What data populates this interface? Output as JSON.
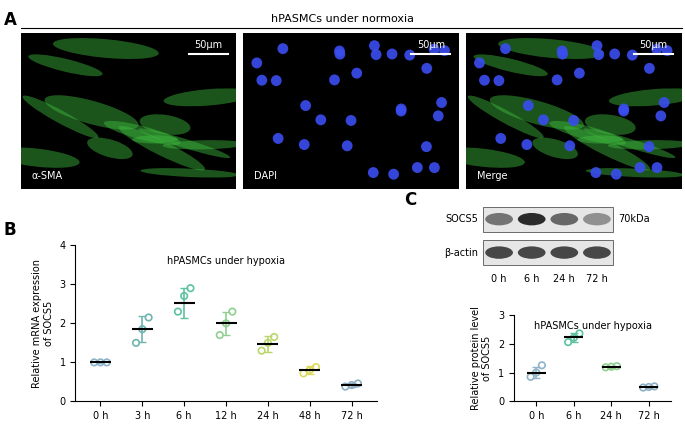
{
  "panel_labels": [
    "A",
    "B",
    "C"
  ],
  "panel_a": {
    "title": "hPASMCs under normoxia",
    "images": [
      {
        "label": "α-SMA",
        "scale_bar": "50μm"
      },
      {
        "label": "DAPI",
        "scale_bar": "50μm"
      },
      {
        "label": "Merge",
        "scale_bar": "50μm"
      }
    ]
  },
  "blot": {
    "rows": [
      {
        "label": "SOCS5",
        "size": "70kDa"
      },
      {
        "label": "β-actin"
      }
    ],
    "lanes": [
      "0 h",
      "6 h",
      "24 h",
      "72 h"
    ]
  },
  "chart_data": [
    {
      "type": "scatter",
      "title": "hPASMCs under hypoxia",
      "y_label": "Relative mRNA expression\nof SOCS5",
      "categories": [
        "0 h",
        "3 h",
        "6 h",
        "12 h",
        "24 h",
        "48 h",
        "72 h"
      ],
      "points": [
        [
          1.0,
          1.0,
          1.0
        ],
        [
          1.5,
          1.85,
          2.15
        ],
        [
          2.3,
          2.7,
          2.9
        ],
        [
          1.7,
          2.0,
          2.3
        ],
        [
          1.3,
          1.5,
          1.65
        ],
        [
          0.72,
          0.8,
          0.88
        ],
        [
          0.38,
          0.42,
          0.46
        ]
      ],
      "means": [
        1.0,
        1.85,
        2.52,
        2.0,
        1.47,
        0.8,
        0.42
      ],
      "errors": [
        0.02,
        0.33,
        0.38,
        0.3,
        0.2,
        0.1,
        0.05
      ],
      "colors": [
        "#8fb3c9",
        "#6fb5b0",
        "#5cc2a0",
        "#8fd08f",
        "#b9d66a",
        "#dcd95e",
        "#8fb0c4"
      ],
      "marker": "o",
      "ylim": [
        0,
        4
      ],
      "yticks": [
        0,
        1,
        2,
        3,
        4
      ]
    },
    {
      "type": "scatter",
      "title": "hPASMCs under hypoxia",
      "y_label": "Relative protein level\nof SOCS5",
      "categories": [
        "0 h",
        "6 h",
        "24 h",
        "72 h"
      ],
      "points": [
        [
          0.85,
          1.0,
          1.25
        ],
        [
          2.05,
          2.2,
          2.35
        ],
        [
          1.18,
          1.2,
          1.22
        ],
        [
          0.48,
          0.5,
          0.52
        ]
      ],
      "means": [
        1.0,
        2.22,
        1.2,
        0.5
      ],
      "errors": [
        0.2,
        0.15,
        0.03,
        0.03
      ],
      "colors": [
        "#8fb3c9",
        "#5cc2a0",
        "#8fd08f",
        "#8fb0c4"
      ],
      "marker": "o",
      "ylim": [
        0,
        3
      ],
      "yticks": [
        0,
        1,
        2,
        3
      ]
    }
  ]
}
